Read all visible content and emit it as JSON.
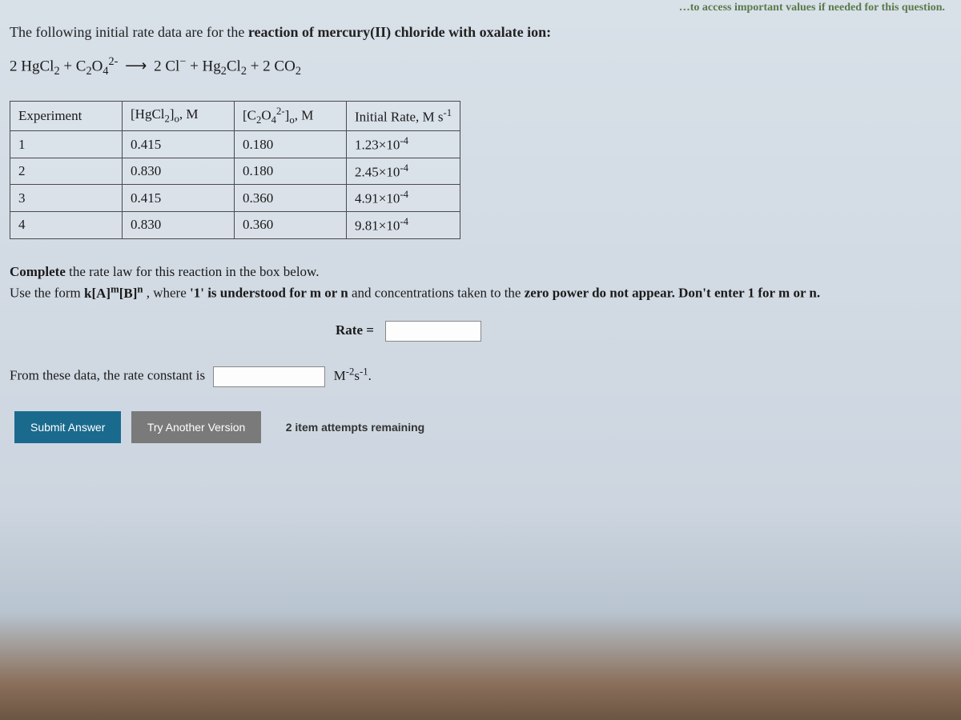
{
  "top_hint": "…to access important values if needed for this question.",
  "intro_prefix": "The following initial rate data are for the ",
  "intro_bold": "reaction of mercury(II) chloride with oxalate ion:",
  "equation": {
    "lhs_1": "2 HgCl",
    "lhs_1_sub": "2",
    "plus": " + C",
    "c_sub": "2",
    "o": "O",
    "o_sub": "4",
    "o_sup": "2-",
    "arrow": "⟶",
    "rhs_1": "2 Cl",
    "rhs_1_sup": "−",
    "rhs_plus": " + Hg",
    "hg_sub": "2",
    "cl": "Cl",
    "cl_sub": "2",
    "co_plus": " + 2 CO",
    "co_sub": "2"
  },
  "table": {
    "headers": {
      "exp": "Experiment",
      "h_a": "[HgCl",
      "h_a_sub": "2",
      "h_a_suffix": "]",
      "h_a_o": "o",
      "h_a_unit": ", M",
      "h_b": "[C",
      "h_b_sub1": "2",
      "h_b_o": "O",
      "h_b_sub2": "4",
      "h_b_sup": "2-",
      "h_b_suffix": "]",
      "h_b_oo": "o",
      "h_b_unit": ", M",
      "rate": "Initial Rate, M s",
      "rate_sup": "-1"
    },
    "rows": [
      {
        "n": "1",
        "a": "0.415",
        "b": "0.180",
        "r_base": "1.23×10",
        "r_sup": "-4"
      },
      {
        "n": "2",
        "a": "0.830",
        "b": "0.180",
        "r_base": "2.45×10",
        "r_sup": "-4"
      },
      {
        "n": "3",
        "a": "0.415",
        "b": "0.360",
        "r_base": "4.91×10",
        "r_sup": "-4"
      },
      {
        "n": "4",
        "a": "0.830",
        "b": "0.360",
        "r_base": "9.81×10",
        "r_sup": "-4"
      }
    ]
  },
  "instr_line1_a": "Complete",
  "instr_line1_b": " the rate law for this reaction in the box below.",
  "instr_line2_a": "Use the form ",
  "instr_line2_b_pre": "k[A]",
  "instr_line2_b_sup1": "m",
  "instr_line2_b_mid": "[B]",
  "instr_line2_b_sup2": "n",
  "instr_line2_c": " , where ",
  "instr_line2_d": "'1' is understood for m or n",
  "instr_line2_e": " and concentrations taken to the ",
  "instr_line2_f": "zero power do not appear. Don't enter 1 for m or n.",
  "rate_label": "Rate =",
  "constant_prefix": "From these data, the rate constant is",
  "units_m": "M",
  "units_m_sup": "-2",
  "units_s": "s",
  "units_s_sup": "-1",
  "units_period": ".",
  "submit_label": "Submit Answer",
  "try_label": "Try Another Version",
  "attempts_text": "2 item attempts remaining"
}
